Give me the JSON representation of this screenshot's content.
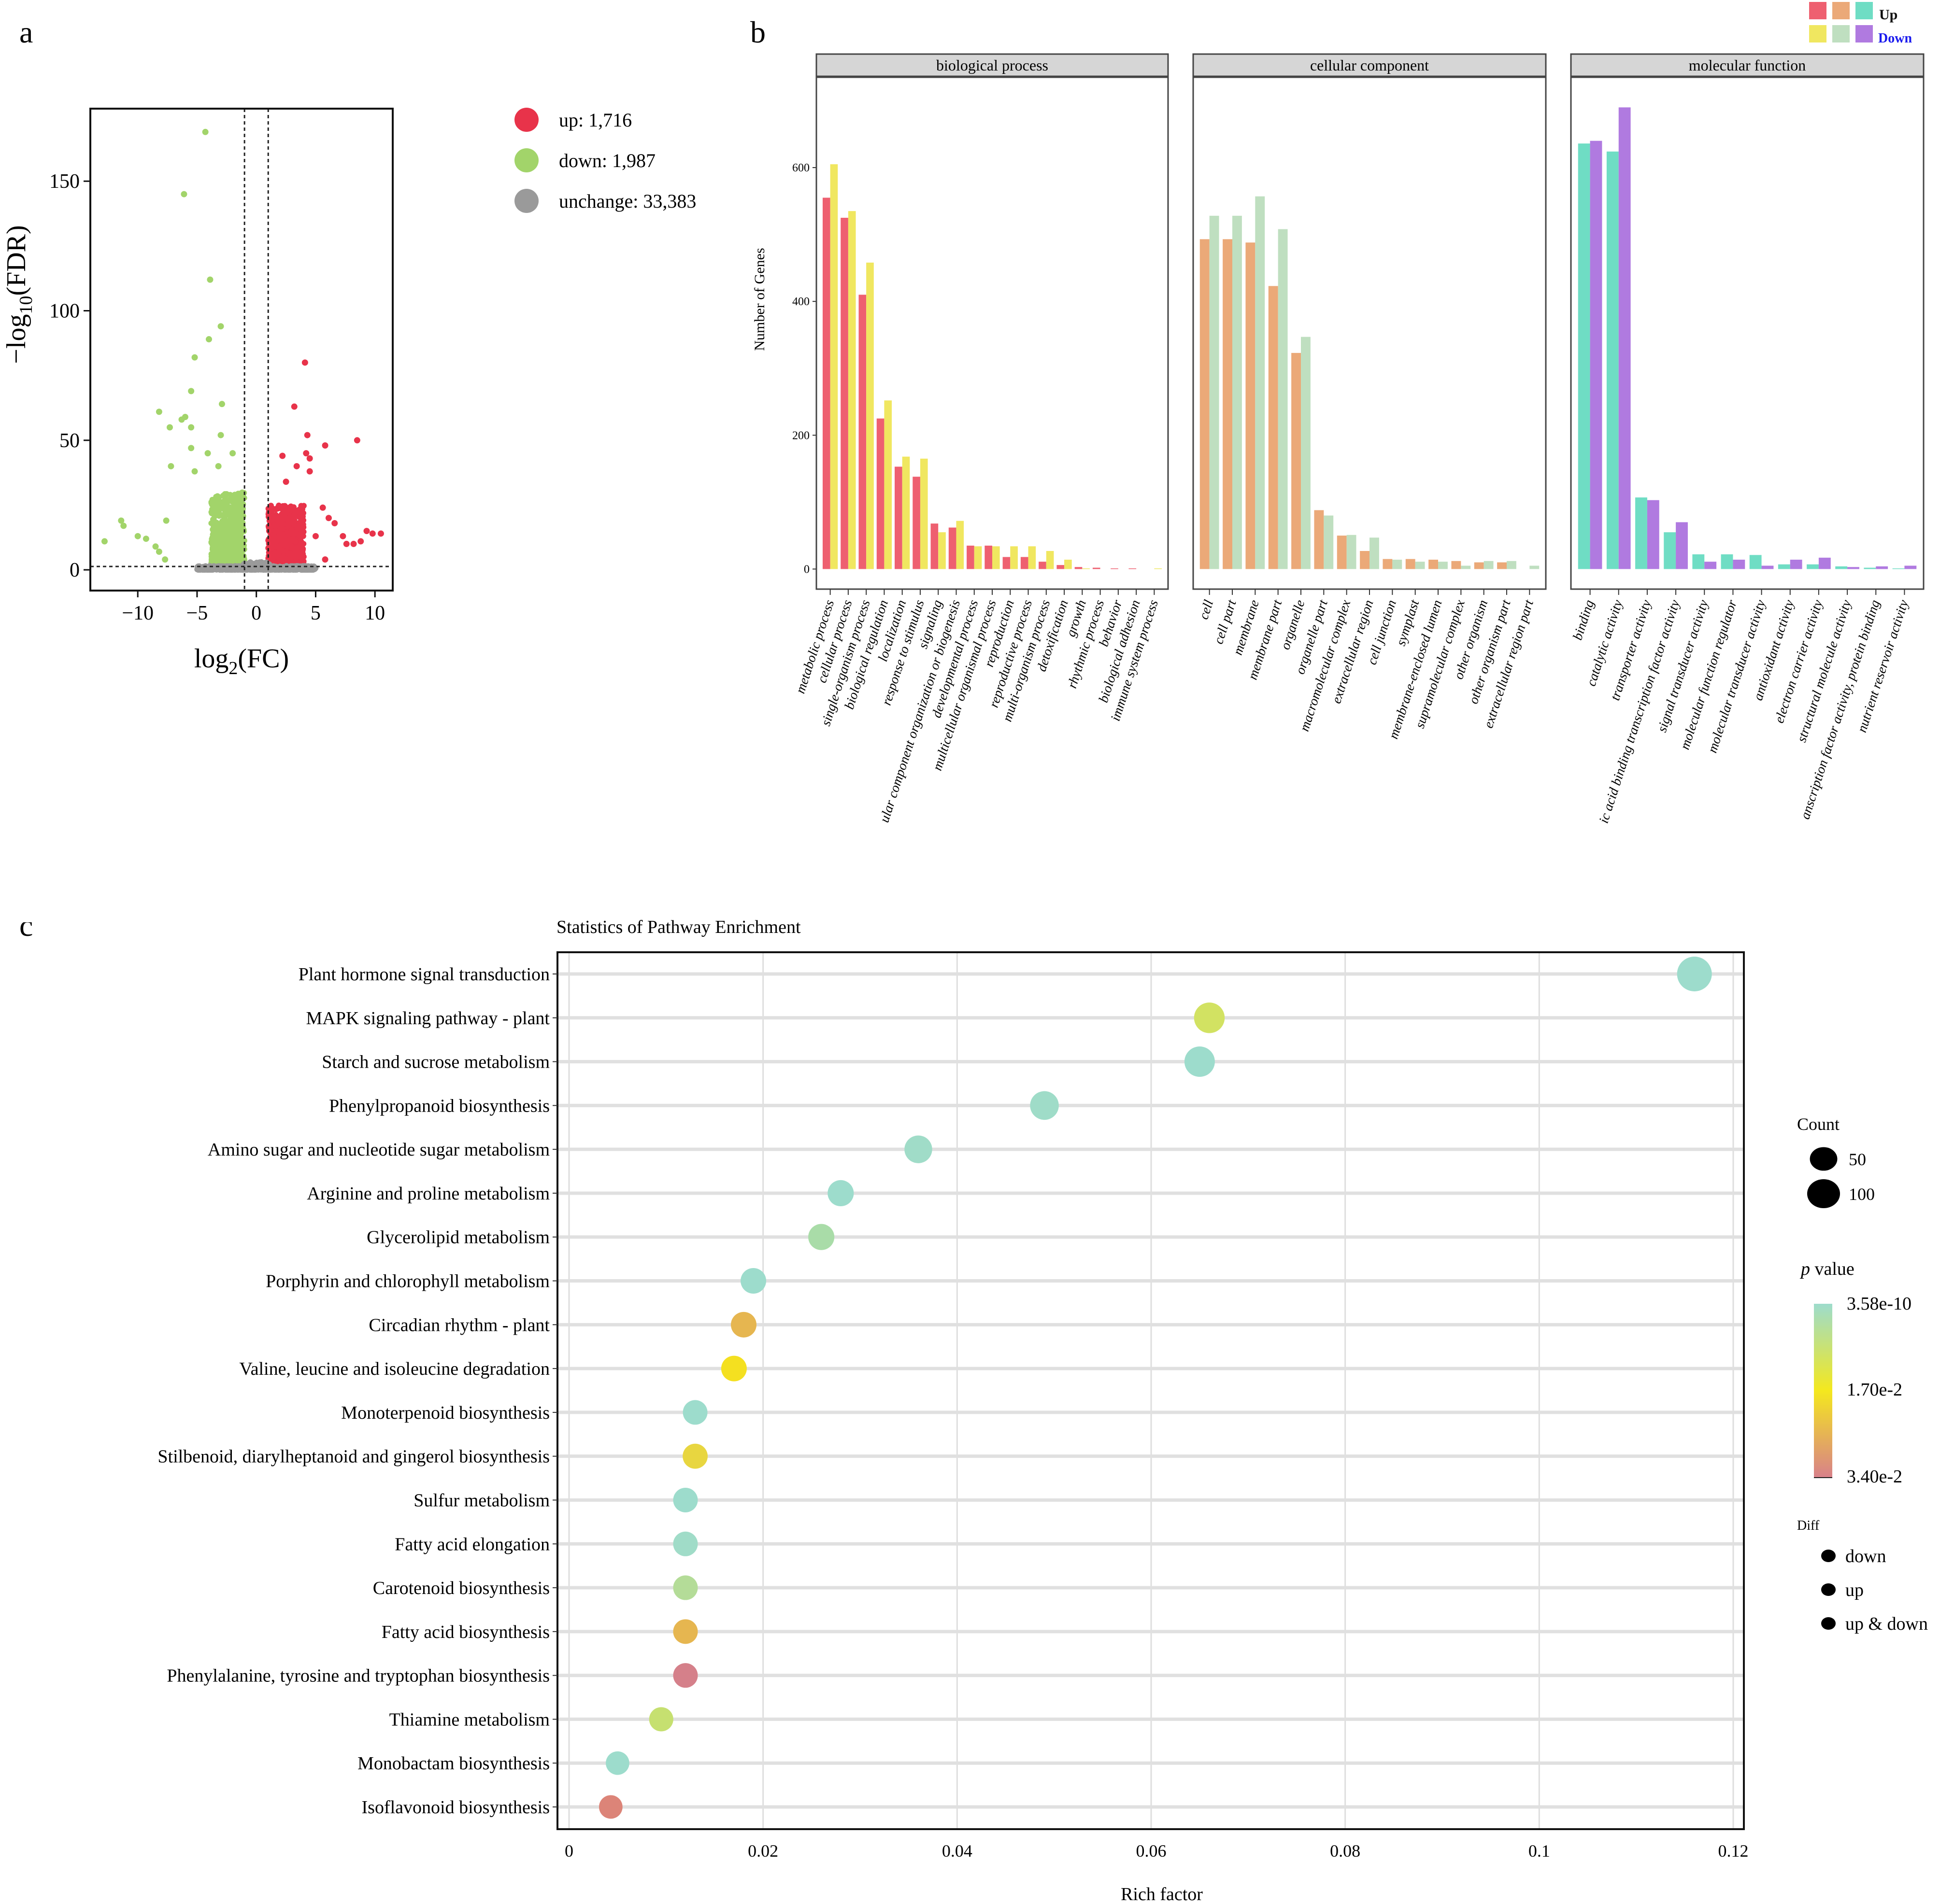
{
  "panel_labels": {
    "a": "a",
    "b": "b",
    "c": "c"
  },
  "chart_data": [
    {
      "id": "volcano",
      "type": "scatter",
      "title": "",
      "xlabel": "log2(FC)",
      "ylabel": "-log10(FDR)",
      "xlim": [
        -14,
        11.5
      ],
      "ylim": [
        -8,
        178
      ],
      "xticks": [
        -10,
        -5,
        0,
        5,
        10
      ],
      "yticks": [
        0,
        50,
        100,
        150
      ],
      "thresholds": {
        "log2fc": [
          -1,
          1
        ],
        "neg_log10_fdr": 1.3
      },
      "legend": [
        {
          "label": "up: 1,716",
          "color": "#e8334a"
        },
        {
          "label": "down: 1,987",
          "color": "#a2d46a"
        },
        {
          "label": "unchange: 33,383",
          "color": "#9a9a9a"
        }
      ],
      "legend_position": "right",
      "highlight_points": {
        "down": [
          [
            -4.3,
            169
          ],
          [
            -6.1,
            145
          ],
          [
            -3.9,
            112
          ],
          [
            -3.0,
            94
          ],
          [
            -4.0,
            89
          ],
          [
            -5.2,
            82
          ],
          [
            -5.5,
            69
          ],
          [
            -2.9,
            64
          ],
          [
            -8.2,
            61
          ],
          [
            -6.0,
            59
          ],
          [
            -6.3,
            58
          ],
          [
            -5.5,
            55
          ],
          [
            -7.3,
            55
          ],
          [
            -3.0,
            52
          ],
          [
            -5.5,
            47
          ],
          [
            -4.1,
            45
          ],
          [
            -2.0,
            45
          ],
          [
            -7.2,
            40
          ],
          [
            -5.2,
            38
          ],
          [
            -3.2,
            40
          ],
          [
            -12.8,
            11
          ],
          [
            -11.4,
            19
          ],
          [
            -11.2,
            17
          ],
          [
            -10.0,
            13
          ],
          [
            -9.3,
            12
          ],
          [
            -8.5,
            9
          ],
          [
            -8.2,
            7
          ],
          [
            -7.7,
            4
          ],
          [
            -7.6,
            19
          ]
        ],
        "up": [
          [
            4.1,
            80
          ],
          [
            3.2,
            63
          ],
          [
            5.8,
            48
          ],
          [
            8.5,
            50
          ],
          [
            4.3,
            52
          ],
          [
            4.2,
            45
          ],
          [
            4.5,
            43
          ],
          [
            2.2,
            44
          ],
          [
            4.5,
            38
          ],
          [
            2.5,
            34
          ],
          [
            3.4,
            40
          ],
          [
            10.5,
            14
          ],
          [
            9.8,
            14
          ],
          [
            9.3,
            15
          ],
          [
            8.8,
            11
          ],
          [
            8.2,
            10
          ],
          [
            7.6,
            10
          ],
          [
            7.3,
            13
          ],
          [
            6.6,
            18
          ],
          [
            6.1,
            20
          ],
          [
            5.6,
            24
          ],
          [
            5.0,
            13
          ],
          [
            5.8,
            4
          ]
        ]
      },
      "dense_regions": [
        {
          "group": "down",
          "x_range": [
            -3.8,
            -1
          ],
          "y_range": [
            2,
            30
          ]
        },
        {
          "group": "up",
          "x_range": [
            1,
            4
          ],
          "y_range": [
            2,
            25
          ]
        },
        {
          "group": "unchange",
          "x_range": [
            -5,
            5
          ],
          "y_range": [
            0,
            3
          ]
        }
      ]
    },
    {
      "id": "go",
      "type": "bar",
      "ylabel": "Number of Genes",
      "ylim": [
        -30,
        735
      ],
      "yticks": [
        0,
        200,
        400,
        600
      ],
      "legend": {
        "up_label": "Up",
        "down_label": "Down",
        "up_colors": [
          "#ee6070",
          "#eba978",
          "#6fddc4"
        ],
        "down_colors": [
          "#f0e760",
          "#bfdfc0",
          "#b07ae0"
        ],
        "up_label_color": "#111111",
        "down_label_color": "#1a1aee"
      },
      "legend_position": "top-right",
      "facets": [
        {
          "title": "biological process",
          "up_color": "#ee6070",
          "down_color": "#f0e760",
          "categories": [
            "metabolic process",
            "cellular process",
            "single-organism process",
            "biological regulation",
            "localization",
            "response to stimulus",
            "signaling",
            "cellular component organization or biogenesis",
            "developmental process",
            "multicellular organismal process",
            "reproduction",
            "reproductive process",
            "multi-organism process",
            "detoxification",
            "growth",
            "rhythmic process",
            "behavior",
            "biological adhesion",
            "immune system process"
          ],
          "tick_labels": [
            "metabolic process",
            "cellular process",
            "single-organism process",
            "biological regulation",
            "localization",
            "response to stimulus",
            "signaling",
            "ular component organization or biogenesis",
            "developmental process",
            "multicellular organismal process",
            "reproduction",
            "reproductive process",
            "multi-organism process",
            "detoxification",
            "growth",
            "rhythmic process",
            "behavior",
            "biological adhesion",
            "immune system process"
          ],
          "up": [
            555,
            525,
            410,
            225,
            153,
            138,
            68,
            62,
            35,
            35,
            18,
            18,
            11,
            6,
            3,
            2,
            1,
            1,
            0
          ],
          "down": [
            605,
            535,
            458,
            252,
            168,
            165,
            55,
            72,
            34,
            34,
            34,
            34,
            27,
            14,
            1,
            0,
            0,
            0,
            1
          ]
        },
        {
          "title": "cellular component",
          "up_color": "#eba978",
          "down_color": "#bfdfc0",
          "categories": [
            "cell",
            "cell part",
            "membrane",
            "membrane part",
            "organelle",
            "organelle part",
            "macromolecular complex",
            "extracellular region",
            "cell junction",
            "symplast",
            "membrane-enclosed lumen",
            "supramolecular complex",
            "other organism",
            "other organism part",
            "extracellular region part"
          ],
          "tick_labels": [
            "cell",
            "cell part",
            "membrane",
            "membrane part",
            "organelle",
            "organelle part",
            "macromolecular complex",
            "extracellular region",
            "cell junction",
            "symplast",
            "membrane-enclosed lumen",
            "supramolecular complex",
            "other organism",
            "other organism part",
            "extracellular region part"
          ],
          "up": [
            493,
            493,
            488,
            423,
            323,
            88,
            50,
            27,
            15,
            15,
            14,
            12,
            10,
            10,
            0
          ],
          "down": [
            528,
            528,
            557,
            508,
            347,
            80,
            51,
            47,
            14,
            11,
            11,
            5,
            12,
            12,
            5
          ]
        },
        {
          "title": "molecular function",
          "up_color": "#6fddc4",
          "down_color": "#b07ae0",
          "categories": [
            "binding",
            "catalytic activity",
            "transporter activity",
            "nucleic acid binding transcription factor activity",
            "signal transducer activity",
            "molecular function regulator",
            "molecular transducer activity",
            "antioxidant activity",
            "electron carrier activity",
            "structural molecule activity",
            "transcription factor activity, protein binding",
            "nutrient reservoir activity"
          ],
          "tick_labels": [
            "binding",
            "catalytic activity",
            "transporter activity",
            "ic acid binding transcription factor activity",
            "signal transducer activity",
            "molecular function regulator",
            "molecular transducer activity",
            "antioxidant activity",
            "electron carrier activity",
            "structural molecule activity",
            "anscription factor activity, protein binding",
            "nutrient reservoir activity"
          ],
          "up": [
            636,
            624,
            107,
            55,
            22,
            22,
            21,
            7,
            7,
            4,
            2,
            1
          ],
          "down": [
            640,
            690,
            103,
            70,
            11,
            14,
            5,
            14,
            17,
            3,
            4,
            5
          ]
        }
      ]
    },
    {
      "id": "kegg",
      "type": "scatter",
      "title": "Statistics of Pathway Enrichment",
      "xlabel": "Rich factor",
      "ylabel": "",
      "xlim": [
        -0.0015,
        0.1215
      ],
      "xticks": [
        0,
        0.02,
        0.04,
        0.06,
        0.08,
        0.1,
        0.12
      ],
      "xtick_labels": [
        "0",
        "0.02",
        "0.04",
        "0.06",
        "0.08",
        "0.1",
        "0.12"
      ],
      "grid": true,
      "pathways": [
        {
          "name": "Plant hormone signal transduction",
          "rich_factor": 0.116,
          "count": 100,
          "color": "#9ddccc"
        },
        {
          "name": "MAPK signaling pathway - plant",
          "rich_factor": 0.066,
          "count": 60,
          "color": "#d2e262"
        },
        {
          "name": "Starch and sucrose metabolism",
          "rich_factor": 0.065,
          "count": 58,
          "color": "#9ddccc"
        },
        {
          "name": "Phenylpropanoid biosynthesis",
          "rich_factor": 0.049,
          "count": 45,
          "color": "#9fdcc8"
        },
        {
          "name": "Amino sugar and nucleotide sugar metabolism",
          "rich_factor": 0.036,
          "count": 38,
          "color": "#a0dcc8"
        },
        {
          "name": "Arginine and proline metabolism",
          "rich_factor": 0.028,
          "count": 28,
          "color": "#9ddccc"
        },
        {
          "name": "Glycerolipid metabolism",
          "rich_factor": 0.026,
          "count": 28,
          "color": "#a9dca8"
        },
        {
          "name": "Porphyrin and chlorophyll metabolism",
          "rich_factor": 0.019,
          "count": 25,
          "color": "#9ddccc"
        },
        {
          "name": "Circadian rhythm - plant",
          "rich_factor": 0.018,
          "count": 25,
          "color": "#e6b650"
        },
        {
          "name": "Valine, leucine and isoleucine degradation",
          "rich_factor": 0.017,
          "count": 25,
          "color": "#f4e020"
        },
        {
          "name": "Monoterpenoid biosynthesis",
          "rich_factor": 0.013,
          "count": 20,
          "color": "#9ddccc"
        },
        {
          "name": "Stilbenoid, diarylheptanoid and gingerol biosynthesis",
          "rich_factor": 0.013,
          "count": 22,
          "color": "#e8d640"
        },
        {
          "name": "Sulfur metabolism",
          "rich_factor": 0.012,
          "count": 20,
          "color": "#9ddccc"
        },
        {
          "name": "Fatty acid elongation",
          "rich_factor": 0.012,
          "count": 20,
          "color": "#a0dcc8"
        },
        {
          "name": "Carotenoid biosynthesis",
          "rich_factor": 0.012,
          "count": 20,
          "color": "#b4dc98"
        },
        {
          "name": "Fatty acid biosynthesis",
          "rich_factor": 0.012,
          "count": 20,
          "color": "#e6b650"
        },
        {
          "name": "Phenylalanine, tyrosine and tryptophan biosynthesis",
          "rich_factor": 0.012,
          "count": 20,
          "color": "#d5808a"
        },
        {
          "name": "Thiamine metabolism",
          "rich_factor": 0.0095,
          "count": 18,
          "color": "#c6e070"
        },
        {
          "name": "Monobactam biosynthesis",
          "rich_factor": 0.005,
          "count": 15,
          "color": "#9ddccc"
        },
        {
          "name": "Isoflavonoid biosynthesis",
          "rich_factor": 0.0043,
          "count": 15,
          "color": "#dc8478"
        }
      ],
      "legend": {
        "count_title": "Count",
        "count_items": [
          {
            "label": "50",
            "value": 50
          },
          {
            "label": "100",
            "value": 100
          }
        ],
        "pvalue_title_italic": "p",
        "pvalue_title_rest": " value",
        "pvalue_labels": [
          "3.58e-10",
          "1.70e-2",
          "3.40e-2"
        ],
        "pvalue_colors": [
          "#9ddccc",
          "#f4e81e",
          "#d8808a"
        ],
        "diff_title": "Diff",
        "diff_items": [
          "down",
          "up",
          "up & down"
        ]
      },
      "legend_position": "right"
    }
  ]
}
